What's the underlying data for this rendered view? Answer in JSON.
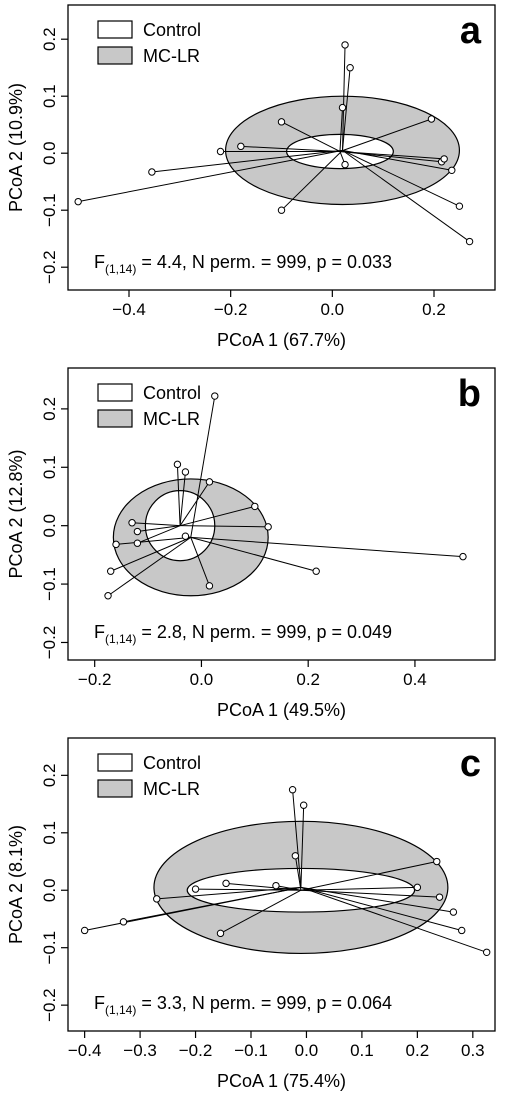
{
  "colors": {
    "control_fill": "#ffffff",
    "mclr_fill": "#c8c8c8",
    "line": "#000000",
    "background": "#ffffff"
  },
  "chart_data": [
    {
      "type": "scatter",
      "panel_label": "a",
      "xlabel": "PCoA 1 (67.7%)",
      "ylabel": "PCoA 2 (10.9%)",
      "xlim": [
        -0.52,
        0.32
      ],
      "ylim": [
        -0.24,
        0.26
      ],
      "xticks": [
        -0.4,
        -0.2,
        0.0,
        0.2
      ],
      "xtick_labels": [
        "−0.4",
        "−0.2",
        "0.0",
        "0.2"
      ],
      "yticks": [
        -0.2,
        -0.1,
        0.0,
        0.1,
        0.2
      ],
      "ytick_labels": [
        "−0.2",
        "−0.1",
        "0.0",
        "0.1",
        "0.2"
      ],
      "legend": [
        "Control",
        "MC-LR"
      ],
      "legend_position": "top-left",
      "stat": {
        "prefix": "F",
        "subscript": "(1,14)",
        "suffix": " = 4.4, N perm. = 999, p = 0.033"
      },
      "groups": [
        {
          "name": "Control",
          "centroid": [
            0.015,
            0.003
          ],
          "ellipse": {
            "rx": 0.105,
            "ry": 0.03
          },
          "points": [
            [
              -0.1,
              0.055
            ],
            [
              -0.18,
              0.012
            ],
            [
              -0.22,
              0.003
            ],
            [
              0.02,
              0.08
            ],
            [
              0.025,
              -0.02
            ],
            [
              0.195,
              0.06
            ],
            [
              0.215,
              -0.015
            ],
            [
              0.22,
              -0.01
            ]
          ]
        },
        {
          "name": "MC-LR",
          "centroid": [
            0.02,
            0.005
          ],
          "ellipse": {
            "rx": 0.23,
            "ry": 0.095
          },
          "points": [
            [
              -0.5,
              -0.085
            ],
            [
              -0.355,
              -0.033
            ],
            [
              -0.1,
              -0.1
            ],
            [
              0.025,
              0.19
            ],
            [
              0.035,
              0.15
            ],
            [
              0.235,
              -0.03
            ],
            [
              0.25,
              -0.093
            ],
            [
              0.27,
              -0.155
            ]
          ]
        }
      ]
    },
    {
      "type": "scatter",
      "panel_label": "b",
      "xlabel": "PCoA 1 (49.5%)",
      "ylabel": "PCoA 2 (12.8%)",
      "xlim": [
        -0.25,
        0.55
      ],
      "ylim": [
        -0.23,
        0.27
      ],
      "xticks": [
        -0.2,
        0.0,
        0.2,
        0.4
      ],
      "xtick_labels": [
        "−0.2",
        "0.0",
        "0.2",
        "0.4"
      ],
      "yticks": [
        -0.2,
        -0.1,
        0.0,
        0.1,
        0.2
      ],
      "ytick_labels": [
        "−0.2",
        "−0.1",
        "0.0",
        "0.1",
        "0.2"
      ],
      "legend": [
        "Control",
        "MC-LR"
      ],
      "legend_position": "top-left",
      "stat": {
        "prefix": "F",
        "subscript": "(1,14)",
        "suffix": "   = 2.8, N perm. = 999, p = 0.049"
      },
      "groups": [
        {
          "name": "Control",
          "centroid": [
            -0.04,
            0.0
          ],
          "ellipse": {
            "rx": 0.065,
            "ry": 0.06
          },
          "points": [
            [
              -0.045,
              0.105
            ],
            [
              -0.03,
              0.092
            ],
            [
              0.015,
              0.075
            ],
            [
              0.1,
              0.033
            ],
            [
              0.125,
              -0.002
            ],
            [
              -0.13,
              0.005
            ],
            [
              -0.12,
              -0.01
            ],
            [
              -0.12,
              -0.03
            ]
          ]
        },
        {
          "name": "MC-LR",
          "centroid": [
            -0.02,
            -0.02
          ],
          "ellipse": {
            "rx": 0.145,
            "ry": 0.1
          },
          "points": [
            [
              0.025,
              0.222
            ],
            [
              0.49,
              -0.053
            ],
            [
              0.215,
              -0.078
            ],
            [
              0.015,
              -0.103
            ],
            [
              -0.17,
              -0.078
            ],
            [
              -0.175,
              -0.12
            ],
            [
              -0.16,
              -0.032
            ],
            [
              -0.03,
              -0.018
            ]
          ]
        }
      ]
    },
    {
      "type": "scatter",
      "panel_label": "c",
      "xlabel": "PCoA 1 (75.4%)",
      "ylabel": "PCoA 2 (8.1%)",
      "xlim": [
        -0.43,
        0.34
      ],
      "ylim": [
        -0.245,
        0.265
      ],
      "xticks": [
        -0.4,
        -0.3,
        -0.2,
        -0.1,
        0.0,
        0.1,
        0.2,
        0.3
      ],
      "xtick_labels": [
        "−0.4",
        "−0.3",
        "−0.2",
        "−0.1",
        "0.0",
        "0.1",
        "0.2",
        "0.3"
      ],
      "yticks": [
        -0.2,
        -0.1,
        0.0,
        0.1,
        0.2
      ],
      "ytick_labels": [
        "−0.2",
        "−0.1",
        "0.0",
        "0.1",
        "0.2"
      ],
      "legend": [
        "Control",
        "MC-LR"
      ],
      "legend_position": "top-left",
      "stat": {
        "prefix": "F",
        "subscript": "(1,14)",
        "suffix": " = 3.3, N perm. = 999, p = 0.064"
      },
      "groups": [
        {
          "name": "Control",
          "centroid": [
            -0.01,
            0.0
          ],
          "ellipse": {
            "rx": 0.205,
            "ry": 0.038
          },
          "points": [
            [
              -0.2,
              0.002
            ],
            [
              -0.145,
              0.012
            ],
            [
              -0.055,
              0.008
            ],
            [
              0.2,
              0.005
            ],
            [
              0.24,
              -0.012
            ],
            [
              0.235,
              0.05
            ],
            [
              -0.02,
              0.06
            ],
            [
              -0.155,
              -0.075
            ]
          ]
        },
        {
          "name": "MC-LR",
          "centroid": [
            -0.01,
            0.005
          ],
          "ellipse": {
            "rx": 0.265,
            "ry": 0.115
          },
          "points": [
            [
              -0.4,
              -0.07
            ],
            [
              -0.33,
              -0.055
            ],
            [
              -0.27,
              -0.015
            ],
            [
              -0.025,
              0.175
            ],
            [
              -0.005,
              0.148
            ],
            [
              0.265,
              -0.038
            ],
            [
              0.28,
              -0.07
            ],
            [
              0.325,
              -0.108
            ]
          ]
        }
      ]
    }
  ]
}
